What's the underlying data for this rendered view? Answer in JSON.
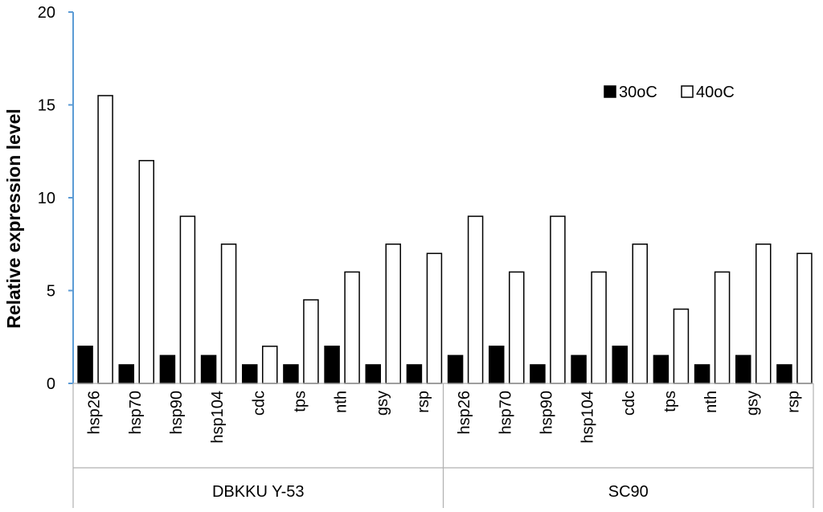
{
  "chart_data": {
    "type": "bar",
    "title": "",
    "xlabel": "",
    "ylabel": "Relative expression level",
    "ylim": [
      0,
      20
    ],
    "yticks": [
      0,
      5,
      10,
      15,
      20
    ],
    "grid": false,
    "legend_position": "top-right",
    "groups": [
      {
        "name": "DBKKU Y-53",
        "categories": [
          "hsp26",
          "hsp70",
          "hsp90",
          "hsp104",
          "cdc",
          "tps",
          "nth",
          "gsy",
          "rsp"
        ]
      },
      {
        "name": "SC90",
        "categories": [
          "hsp26",
          "hsp70",
          "hsp90",
          "hsp104",
          "cdc",
          "tps",
          "nth",
          "gsy",
          "rsp"
        ]
      }
    ],
    "series": [
      {
        "name": "30oC",
        "color": "#000000",
        "fill": "solid",
        "values": [
          2,
          1,
          1.5,
          1.5,
          1,
          1,
          2,
          1,
          1,
          1.5,
          2,
          1,
          1.5,
          2,
          1.5,
          1,
          1.5,
          1
        ]
      },
      {
        "name": "40oC",
        "color": "#ffffff",
        "fill": "outline",
        "values": [
          15.5,
          12,
          9,
          7.5,
          2,
          4.5,
          6,
          7.5,
          7,
          9,
          6,
          9,
          6,
          7.5,
          4,
          6,
          7.5,
          7
        ]
      }
    ],
    "axis_color": "#5b9bd5"
  }
}
